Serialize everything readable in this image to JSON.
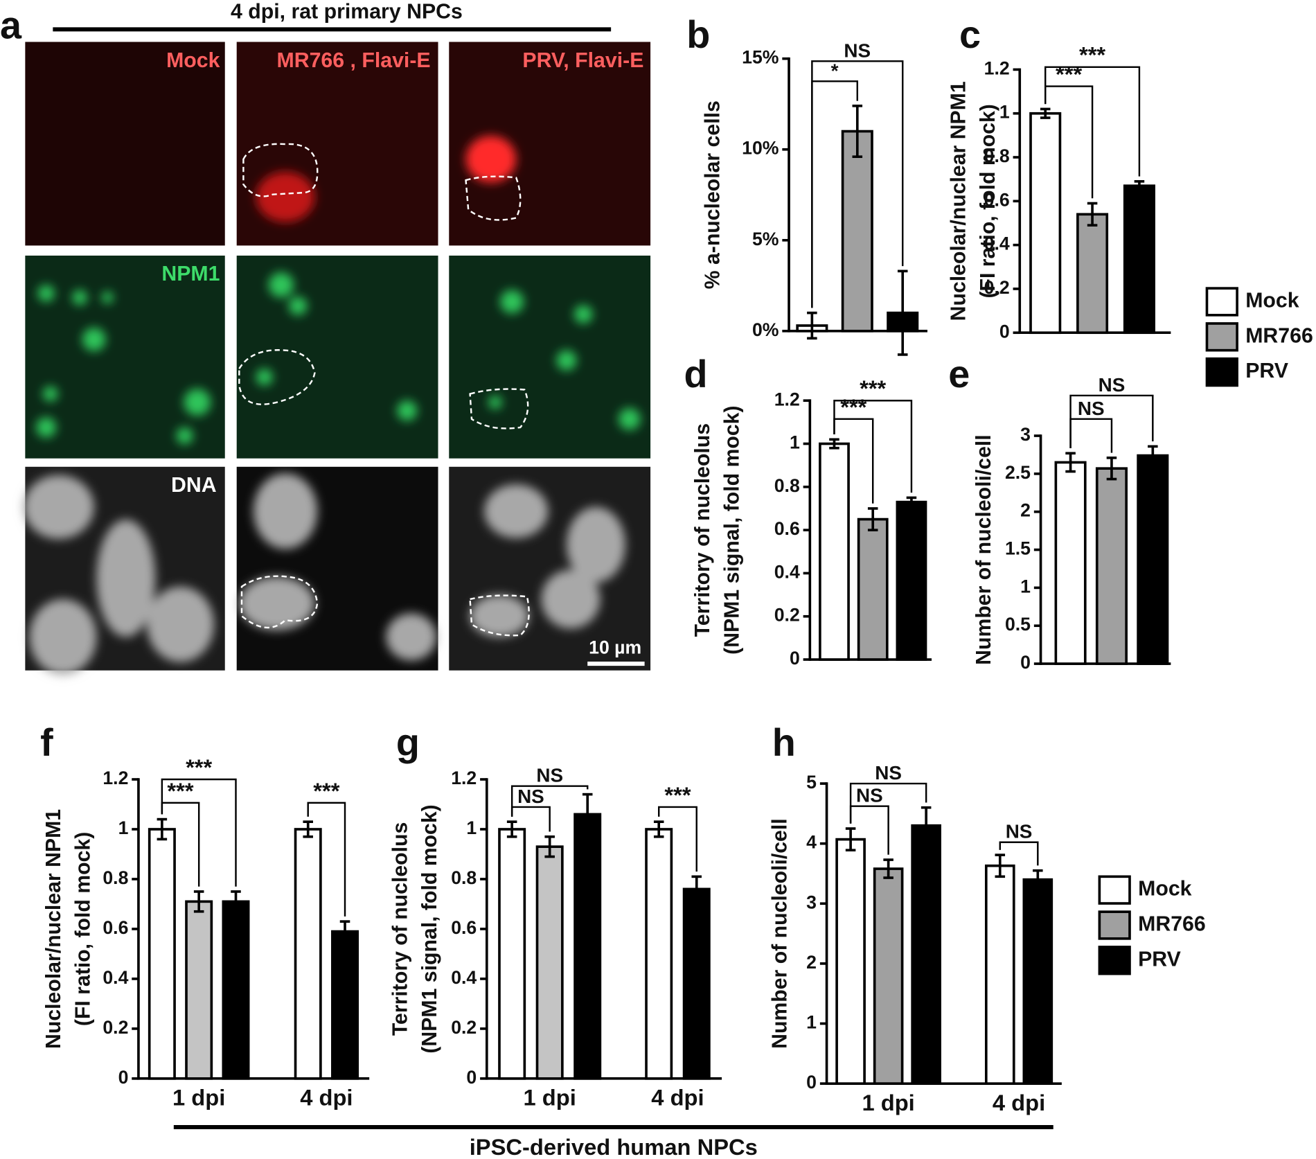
{
  "figure": {
    "panel_a": {
      "panel": "a",
      "title": "4 dpi, rat primary NPCs",
      "columns": [
        "Mock",
        "MR766 , Flavi-E",
        "PRV, Flavi-E"
      ],
      "rows": [
        "NPM1",
        "DNA"
      ],
      "scale_bar": "10 µm"
    },
    "footer": "iPSC-derived human NPCs"
  },
  "chart_data": [
    {
      "panel": "b",
      "type": "bar",
      "ylabel": [
        "% a-nucleolar cells"
      ],
      "ylim": [
        0,
        15
      ],
      "yticks": [
        {
          "value": 0,
          "label": "0%"
        },
        {
          "value": 5,
          "label": "5%"
        },
        {
          "value": 10,
          "label": "10%"
        },
        {
          "value": 15,
          "label": "15%"
        }
      ],
      "series": [
        {
          "color": "#ffffff",
          "values": [
            0.3
          ],
          "errors": [
            0.7
          ]
        },
        {
          "color": "#a0a0a0",
          "values": [
            11
          ],
          "errors": [
            1.4
          ]
        },
        {
          "color": "#000000",
          "values": [
            1
          ],
          "errors": [
            2.3
          ]
        }
      ],
      "annotations": [
        {
          "text": "*",
          "between": [
            0,
            1
          ]
        },
        {
          "text": "NS",
          "between": [
            0,
            2
          ]
        }
      ]
    },
    {
      "panel": "c",
      "type": "bar",
      "ylabel": [
        "Nucleolar/nuclear NPM1",
        "(FI ratio, fold mock)"
      ],
      "ylim": [
        0,
        1.2
      ],
      "yticks": [
        0,
        0.2,
        0.4,
        0.6,
        0.8,
        1,
        1.2
      ],
      "series": [
        {
          "name": "Mock",
          "color": "#ffffff",
          "values": [
            1.0
          ],
          "errors": [
            0.02
          ]
        },
        {
          "name": "MR766",
          "color": "#a0a0a0",
          "values": [
            0.54
          ],
          "errors": [
            0.05
          ]
        },
        {
          "name": "PRV",
          "color": "#000000",
          "values": [
            0.67
          ],
          "errors": [
            0.02
          ]
        }
      ],
      "annotations": [
        {
          "text": "***",
          "between": [
            0,
            1
          ]
        },
        {
          "text": "***",
          "between": [
            0,
            2
          ]
        }
      ]
    },
    {
      "panel": "d",
      "type": "bar",
      "ylabel": [
        "Territory of nucleolus",
        "(NPM1 signal, fold mock)"
      ],
      "ylim": [
        0,
        1.2
      ],
      "yticks": [
        0,
        0.2,
        0.4,
        0.6,
        0.8,
        1,
        1.2
      ],
      "series": [
        {
          "color": "#ffffff",
          "values": [
            1.0
          ],
          "errors": [
            0.02
          ]
        },
        {
          "color": "#a0a0a0",
          "values": [
            0.65
          ],
          "errors": [
            0.05
          ]
        },
        {
          "color": "#000000",
          "values": [
            0.73
          ],
          "errors": [
            0.02
          ]
        }
      ],
      "annotations": [
        {
          "text": "***",
          "between": [
            0,
            1
          ]
        },
        {
          "text": "***",
          "between": [
            0,
            2
          ]
        }
      ]
    },
    {
      "panel": "e",
      "type": "bar",
      "ylabel": [
        "Number of nucleoli/cell"
      ],
      "ylim": [
        0,
        3
      ],
      "yticks": [
        0,
        0.5,
        1,
        1.5,
        2,
        2.5,
        3
      ],
      "series": [
        {
          "color": "#ffffff",
          "values": [
            2.65
          ],
          "errors": [
            0.12
          ]
        },
        {
          "color": "#a0a0a0",
          "values": [
            2.57
          ],
          "errors": [
            0.14
          ]
        },
        {
          "color": "#000000",
          "values": [
            2.74
          ],
          "errors": [
            0.12
          ]
        }
      ],
      "annotations": [
        {
          "text": "NS",
          "between": [
            0,
            1
          ]
        },
        {
          "text": "NS",
          "between": [
            0,
            2
          ]
        }
      ]
    },
    {
      "panel": "f",
      "type": "bar",
      "ylabel": [
        "Nucleolar/nuclear NPM1",
        "(FI ratio, fold mock)"
      ],
      "ylim": [
        0,
        1.2
      ],
      "yticks": [
        0,
        0.2,
        0.4,
        0.6,
        0.8,
        1,
        1.2
      ],
      "categories": [
        "1 dpi",
        "4 dpi"
      ],
      "series": [
        {
          "color": "#ffffff",
          "values": [
            1.0,
            1.0
          ],
          "errors": [
            0.04,
            0.03
          ]
        },
        {
          "color": "#c4c4c4",
          "values": [
            0.71,
            null
          ],
          "errors": [
            0.04,
            null
          ]
        },
        {
          "color": "#000000",
          "values": [
            0.71,
            0.59
          ],
          "errors": [
            0.04,
            0.04
          ]
        }
      ],
      "annotations": [
        {
          "text": "***",
          "group": 0,
          "between": [
            0,
            1
          ]
        },
        {
          "text": "***",
          "group": 0,
          "between": [
            0,
            2
          ]
        },
        {
          "text": "***",
          "group": 1,
          "between": [
            0,
            2
          ]
        }
      ]
    },
    {
      "panel": "g",
      "type": "bar",
      "ylabel": [
        "Territory of nucleolus",
        "(NPM1 signal, fold mock)"
      ],
      "ylim": [
        0,
        1.2
      ],
      "yticks": [
        0,
        0.2,
        0.4,
        0.6,
        0.8,
        1,
        1.2
      ],
      "categories": [
        "1 dpi",
        "4 dpi"
      ],
      "series": [
        {
          "color": "#ffffff",
          "values": [
            1.0,
            1.0
          ],
          "errors": [
            0.03,
            0.03
          ]
        },
        {
          "color": "#c4c4c4",
          "values": [
            0.93,
            null
          ],
          "errors": [
            0.04,
            null
          ]
        },
        {
          "color": "#000000",
          "values": [
            1.06,
            0.76
          ],
          "errors": [
            0.08,
            0.05
          ]
        }
      ],
      "annotations": [
        {
          "text": "NS",
          "group": 0,
          "between": [
            0,
            1
          ]
        },
        {
          "text": "NS",
          "group": 0,
          "between": [
            0,
            2
          ]
        },
        {
          "text": "***",
          "group": 1,
          "between": [
            0,
            2
          ]
        }
      ]
    },
    {
      "panel": "h",
      "type": "bar",
      "ylabel": [
        "Number of nucleoli/cell"
      ],
      "ylim": [
        0,
        5
      ],
      "yticks": [
        0,
        1,
        2,
        3,
        4,
        5
      ],
      "categories": [
        "1 dpi",
        "4 dpi"
      ],
      "series": [
        {
          "name": "Mock",
          "color": "#ffffff",
          "values": [
            4.07,
            3.63
          ],
          "errors": [
            0.18,
            0.18
          ]
        },
        {
          "name": "MR766",
          "color": "#a0a0a0",
          "values": [
            3.58,
            null
          ],
          "errors": [
            0.15,
            null
          ]
        },
        {
          "name": "PRV",
          "color": "#000000",
          "values": [
            4.3,
            3.4
          ],
          "errors": [
            0.3,
            0.15
          ]
        }
      ],
      "annotations": [
        {
          "text": "NS",
          "group": 0,
          "between": [
            0,
            1
          ]
        },
        {
          "text": "NS",
          "group": 0,
          "between": [
            0,
            2
          ]
        },
        {
          "text": "NS",
          "group": 1,
          "between": [
            0,
            2
          ]
        }
      ]
    }
  ]
}
